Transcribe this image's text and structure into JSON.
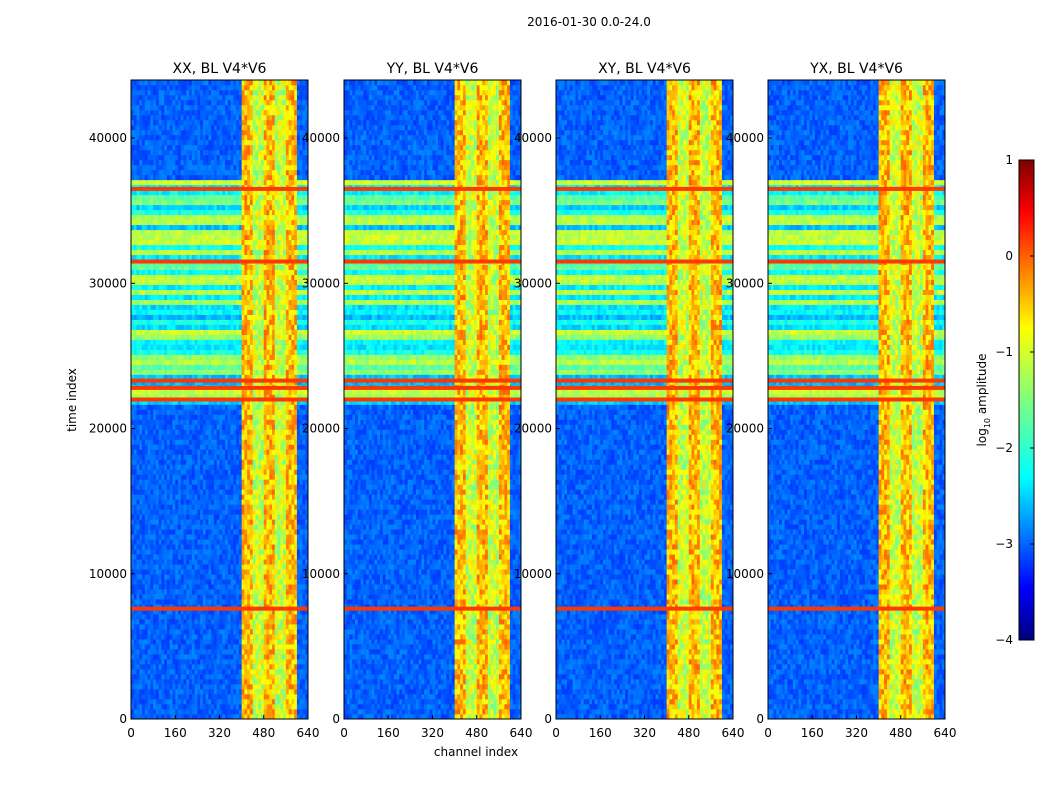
{
  "chart_data": {
    "type": "heatmap",
    "suptitle": "2016-01-30 0.0-24.0",
    "panels": [
      {
        "title": "XX, BL V4*V6",
        "pol": "XX"
      },
      {
        "title": "YY, BL V4*V6",
        "pol": "YY"
      },
      {
        "title": "XY, BL V4*V6",
        "pol": "XY"
      },
      {
        "title": "YX, BL V4*V6",
        "pol": "YX"
      }
    ],
    "xlabel": "channel index",
    "ylabel": "time index",
    "xlim": [
      0,
      640
    ],
    "ylim": [
      0,
      44000
    ],
    "xticks": [
      0,
      160,
      320,
      480,
      640
    ],
    "xtick_labels": [
      "0",
      "160",
      "320",
      "480",
      "640"
    ],
    "yticks": [
      0,
      10000,
      20000,
      30000,
      40000
    ],
    "ytick_labels": [
      "0",
      "10000",
      "20000",
      "30000",
      "40000"
    ],
    "colorbar": {
      "label_prefix": "log",
      "label_sub": "10",
      "label_suffix": " amplitude",
      "range": [
        -4,
        1
      ],
      "ticks": [
        1,
        0,
        -1,
        -2,
        -3,
        -4
      ],
      "tick_labels": [
        "1",
        "0",
        "−1",
        "−2",
        "−3",
        "−4"
      ],
      "colormap": "jet"
    },
    "colors": {
      "jet": [
        "#00007f",
        "#0000ff",
        "#007fff",
        "#00ffff",
        "#7fff7f",
        "#ffff00",
        "#ff7f00",
        "#ff0000",
        "#7f0000"
      ]
    },
    "features": {
      "rfi_band_channels": [
        400,
        600
      ],
      "strong_time_rows": [
        7600,
        22800,
        23300,
        22000,
        36500,
        31500
      ],
      "striped_time_range": [
        21500,
        37000
      ]
    }
  }
}
